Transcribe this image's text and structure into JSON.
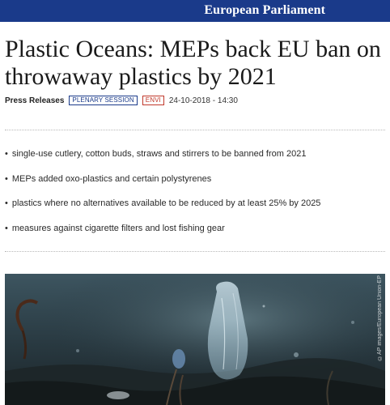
{
  "header": {
    "brand": "European Parliament"
  },
  "article": {
    "title": "Plastic Oceans: MEPs back EU ban on throwaway plastics by 2021",
    "category": "Press Releases",
    "tags": [
      "PLENARY SESSION",
      "ENVI"
    ],
    "date": "24-10-2018 - 14:30",
    "bullets": [
      "single-use cutlery, cotton buds, straws and stirrers to be banned from 2021",
      "MEPs added oxo-plastics and certain polystyrenes",
      "plastics where no alternatives available to be reduced by at least 25% by 2025",
      "measures against cigarette filters and lost fishing gear"
    ],
    "image_credit": "©AP images/European Union-EP"
  },
  "colors": {
    "brand": "#1a3a8a",
    "tag_red": "#c0392b"
  }
}
